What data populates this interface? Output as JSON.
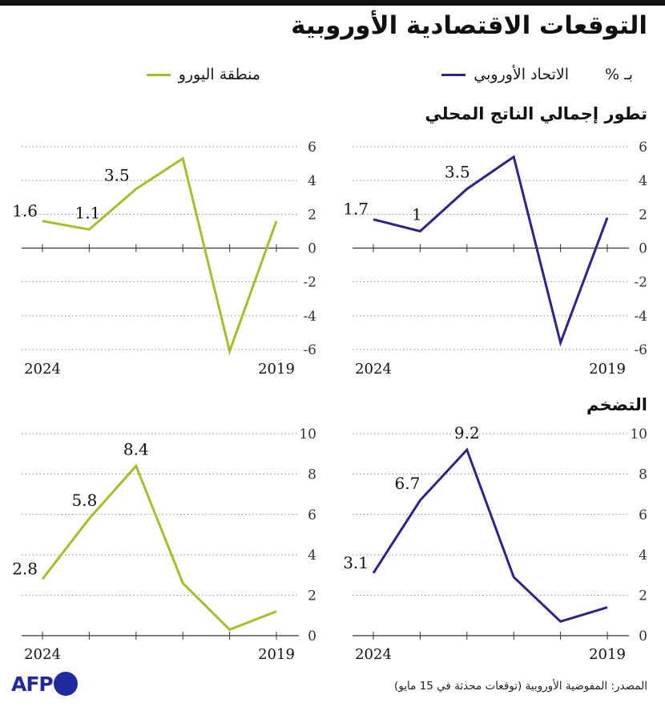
{
  "title": "التوقعات الاقتصادية الأوروبية",
  "unit_label": "بـ %",
  "legend": {
    "eu": {
      "label": "الاتحاد الأوروبي",
      "color": "#2b2586"
    },
    "eurozone": {
      "label": "منطقة اليورو",
      "color": "#a8bd2c"
    }
  },
  "sections": {
    "gdp": "تطور إجمالي الناتج المحلي",
    "inflation": "التضخم"
  },
  "source": "المصدر: المفوضية الأوروبية (توقعات محدثة في 15 مايو)",
  "logo_text": "AFP",
  "chart_data": [
    {
      "type": "line",
      "name": "gdp-eu",
      "x": [
        2019,
        2020,
        2021,
        2022,
        2023,
        2024
      ],
      "values": [
        1.8,
        -5.6,
        5.4,
        3.5,
        1.0,
        1.7
      ],
      "ylim": [
        -6,
        6
      ],
      "yticks": [
        6,
        4,
        2,
        0,
        -2,
        -4,
        -6
      ],
      "ytick_labels": [
        "6",
        "4",
        "2",
        "0",
        "-2",
        "-4",
        "-6"
      ],
      "xtick_labels": [
        "2024",
        "2019"
      ],
      "data_labels": [
        {
          "x": 2024,
          "text": "1.7"
        },
        {
          "x": 2023,
          "text": "1"
        },
        {
          "x": 2022,
          "text": "3.5"
        }
      ],
      "series_key": "eu"
    },
    {
      "type": "line",
      "name": "gdp-eurozone",
      "x": [
        2019,
        2020,
        2021,
        2022,
        2023,
        2024
      ],
      "values": [
        1.6,
        -6.1,
        5.3,
        3.5,
        1.1,
        1.6
      ],
      "ylim": [
        -6,
        6
      ],
      "yticks": [
        6,
        4,
        2,
        0,
        -2,
        -4,
        -6
      ],
      "ytick_labels": [
        "6",
        "4",
        "2",
        "0",
        "-2",
        "-4",
        "-6"
      ],
      "xtick_labels": [
        "2024",
        "2019"
      ],
      "data_labels": [
        {
          "x": 2024,
          "text": "1.6"
        },
        {
          "x": 2023,
          "text": "1.1"
        },
        {
          "x": 2022,
          "text": "3.5"
        }
      ],
      "series_key": "eurozone"
    },
    {
      "type": "line",
      "name": "inflation-eu",
      "x": [
        2019,
        2020,
        2021,
        2022,
        2023,
        2024
      ],
      "values": [
        1.4,
        0.7,
        2.9,
        9.2,
        6.7,
        3.1
      ],
      "ylim": [
        0,
        10
      ],
      "yticks": [
        10,
        8,
        6,
        4,
        2,
        0
      ],
      "ytick_labels": [
        "10",
        "8",
        "6",
        "4",
        "2",
        "0"
      ],
      "xtick_labels": [
        "2024",
        "2019"
      ],
      "data_labels": [
        {
          "x": 2024,
          "text": "3.1"
        },
        {
          "x": 2023,
          "text": "6.7"
        },
        {
          "x": 2022,
          "text": "9.2"
        }
      ],
      "series_key": "eu"
    },
    {
      "type": "line",
      "name": "inflation-eurozone",
      "x": [
        2019,
        2020,
        2021,
        2022,
        2023,
        2024
      ],
      "values": [
        1.2,
        0.3,
        2.6,
        8.4,
        5.8,
        2.8
      ],
      "ylim": [
        0,
        10
      ],
      "yticks": [
        10,
        8,
        6,
        4,
        2,
        0
      ],
      "ytick_labels": [
        "10",
        "8",
        "6",
        "4",
        "2",
        "0"
      ],
      "xtick_labels": [
        "2024",
        "2019"
      ],
      "data_labels": [
        {
          "x": 2024,
          "text": "2.8"
        },
        {
          "x": 2023,
          "text": "5.8"
        },
        {
          "x": 2022,
          "text": "8.4"
        }
      ],
      "series_key": "eurozone"
    }
  ]
}
